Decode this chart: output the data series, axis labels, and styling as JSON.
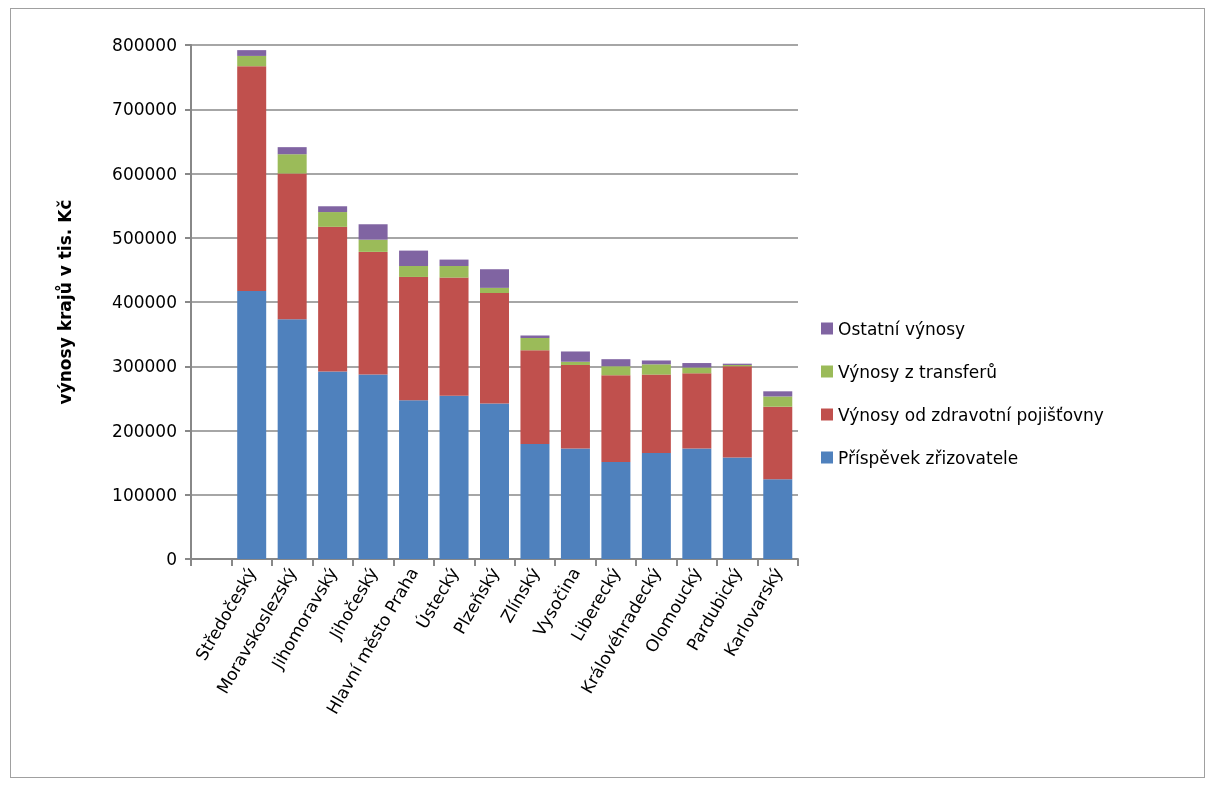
{
  "chart_data": {
    "type": "bar",
    "stacked": true,
    "ylabel": "výnosy krajů v tis. Kč",
    "categories": [
      null,
      "Středočeský",
      "Moravskoslezský",
      "Jihomoravský",
      "Jihočeský",
      "Hlavní město Praha",
      "Ústecký",
      "Plzeňský",
      "Zlínský",
      "Vysočina",
      "Liberecký",
      "Královéhradecký",
      "Olomoucký",
      "Pardubický",
      "Karlovarský"
    ],
    "series": [
      {
        "name": "Příspěvek zřizovatele",
        "color": "#4f81bd",
        "values": [
          null,
          417000,
          373000,
          292000,
          287000,
          247000,
          254000,
          242000,
          179000,
          172000,
          151000,
          165000,
          172000,
          158000,
          124000
        ]
      },
      {
        "name": "Výnosy od zdravotní pojišťovny",
        "color": "#c0504d",
        "values": [
          null,
          350000,
          227000,
          225000,
          191000,
          192000,
          184000,
          172000,
          146000,
          130000,
          135000,
          122000,
          117000,
          142000,
          113000
        ]
      },
      {
        "name": "Výnosy z transferů",
        "color": "#9bbb59",
        "values": [
          null,
          16000,
          30000,
          23000,
          19000,
          17000,
          18000,
          8000,
          19000,
          5000,
          14000,
          16000,
          9000,
          2000,
          16000
        ]
      },
      {
        "name": "Ostatní výnosy",
        "color": "#8064a2",
        "values": [
          null,
          9000,
          11000,
          9000,
          24000,
          24000,
          10000,
          29000,
          4000,
          16000,
          11000,
          6000,
          7000,
          2000,
          8000
        ]
      }
    ],
    "ylim": [
      0,
      800000
    ],
    "yticks": [
      0,
      100000,
      200000,
      300000,
      400000,
      500000,
      600000,
      700000,
      800000
    ],
    "grid": "y",
    "legend": "right"
  }
}
